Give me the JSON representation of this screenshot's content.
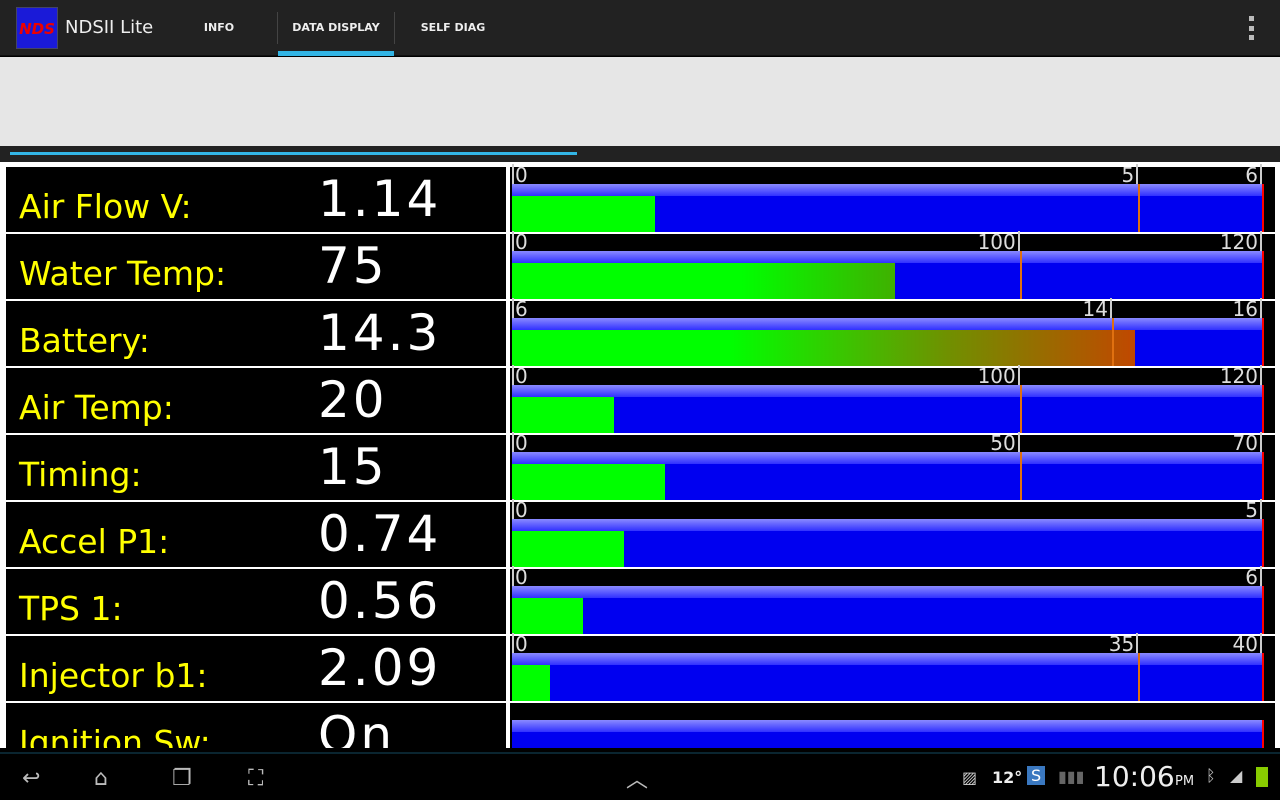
{
  "app": {
    "title": "NDSII Lite",
    "logo_text": "NDS"
  },
  "tabs": [
    {
      "label": "INFO",
      "active": false
    },
    {
      "label": "DATA DISPLAY",
      "active": true
    },
    {
      "label": "SELF DIAG",
      "active": false
    }
  ],
  "accent": "#33b5e5",
  "rows": [
    {
      "label": "Air Flow V:",
      "value": "1.14",
      "min": "0",
      "ticks": [
        {
          "label": "5",
          "at": 0.835
        },
        {
          "label": "6",
          "at": 1
        }
      ],
      "fill": 0.19,
      "fill_style": "green"
    },
    {
      "label": "Water Temp:",
      "value": "75",
      "min": "0",
      "ticks": [
        {
          "label": "100",
          "at": 0.677
        },
        {
          "label": "120",
          "at": 1
        }
      ],
      "fill": 0.51,
      "fill_style": "green-gradient"
    },
    {
      "label": "Battery:",
      "value": "14.3",
      "min": "6",
      "ticks": [
        {
          "label": "14",
          "at": 0.8
        },
        {
          "label": "16",
          "at": 1
        }
      ],
      "fill": 0.83,
      "fill_style": "green-to-orange"
    },
    {
      "label": "Air Temp:",
      "value": "20",
      "min": "0",
      "ticks": [
        {
          "label": "100",
          "at": 0.677
        },
        {
          "label": "120",
          "at": 1
        }
      ],
      "fill": 0.136,
      "fill_style": "green"
    },
    {
      "label": "Timing:",
      "value": "15",
      "min": "0",
      "ticks": [
        {
          "label": "50",
          "at": 0.677
        },
        {
          "label": "70",
          "at": 1
        }
      ],
      "fill": 0.204,
      "fill_style": "green"
    },
    {
      "label": "Accel P1:",
      "value": "0.74",
      "min": "0",
      "ticks": [
        {
          "label": "5",
          "at": 1
        }
      ],
      "fill": 0.149,
      "fill_style": "green"
    },
    {
      "label": "TPS 1:",
      "value": "0.56",
      "min": "0",
      "ticks": [
        {
          "label": "6",
          "at": 1
        }
      ],
      "fill": 0.095,
      "fill_style": "green"
    },
    {
      "label": "Injector b1:",
      "value": "2.09",
      "min": "0",
      "ticks": [
        {
          "label": "35",
          "at": 0.835
        },
        {
          "label": "40",
          "at": 1
        }
      ],
      "fill": 0.05,
      "fill_style": "green"
    },
    {
      "label": "Ignition Sw:",
      "value": "On",
      "min": "",
      "ticks": [],
      "fill": 1,
      "fill_style": "red"
    }
  ],
  "status": {
    "temperature": "12°",
    "time": "10:06",
    "ampm": "PM"
  }
}
